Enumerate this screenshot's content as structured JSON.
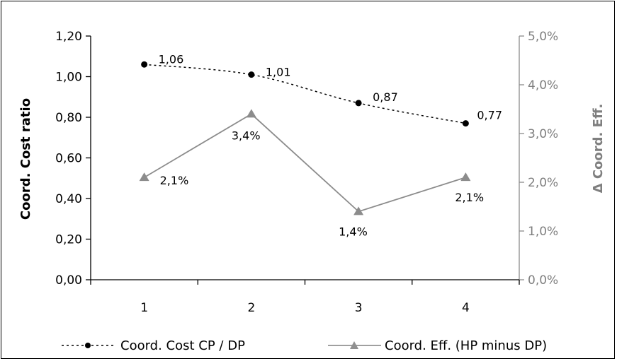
{
  "chart_data": {
    "type": "line",
    "categories": [
      "1",
      "2",
      "3",
      "4"
    ],
    "series": [
      {
        "name": "Coord. Cost CP / DP",
        "axis": "left",
        "values": [
          1.06,
          1.01,
          0.87,
          0.77
        ],
        "labels": [
          "1,06",
          "1,01",
          "0,87",
          "0,77"
        ],
        "color": "#000000",
        "line_style": "dotted",
        "marker": "circle"
      },
      {
        "name": "Coord. Eff. (HP minus DP)",
        "axis": "right",
        "values": [
          2.1,
          3.4,
          1.4,
          2.1
        ],
        "labels": [
          "2,1%",
          "3,4%",
          "1,4%",
          "2,1%"
        ],
        "color": "#808080",
        "line_style": "solid",
        "marker": "triangle"
      }
    ],
    "ylabel": "Coord. Cost ratio",
    "y2label": "Δ Coord. Eff.",
    "ylim": [
      0,
      1.2
    ],
    "y2lim": [
      0,
      5.0
    ],
    "yticks": [
      "0,00",
      "0,20",
      "0,40",
      "0,60",
      "0,80",
      "1,00",
      "1,20"
    ],
    "y2ticks": [
      "0,0%",
      "1,0%",
      "2,0%",
      "3,0%",
      "4,0%",
      "5,0%"
    ],
    "grid": false,
    "legend": "bottom"
  }
}
